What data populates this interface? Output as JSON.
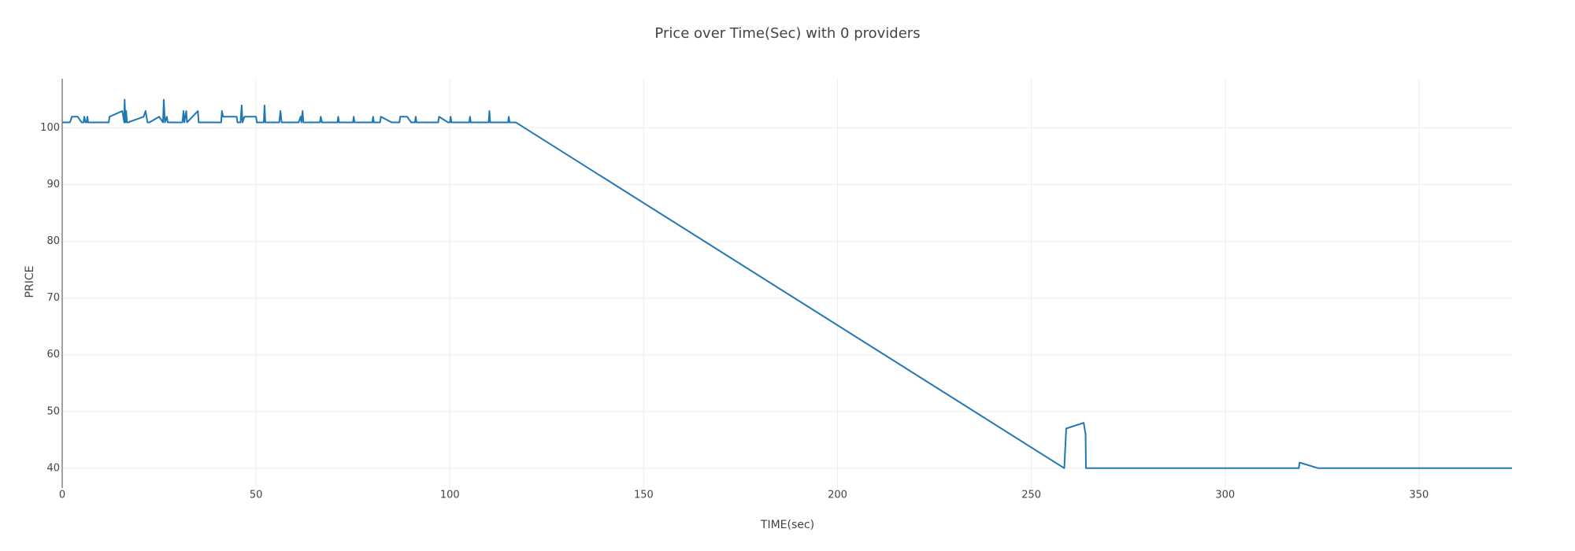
{
  "chart_data": {
    "type": "line",
    "title": "Price over Time(Sec) with 0 providers",
    "x_label": "TIME(sec)",
    "y_label": "PRICE",
    "xlim": [
      0,
      374
    ],
    "ylim": [
      36.5,
      108.7
    ],
    "xticks": [
      0,
      50,
      100,
      150,
      200,
      250,
      300,
      350
    ],
    "yticks": [
      40,
      50,
      60,
      70,
      80,
      90,
      100
    ],
    "grid": true,
    "series": [
      {
        "color": "#1f77b4",
        "x": [
          0,
          2,
          2.5,
          4,
          5,
          5.5,
          5.7,
          6,
          6.3,
          6.5,
          6.7,
          12,
          12.2,
          15.5,
          16,
          16.1,
          16.3,
          16.5,
          16.7,
          17,
          21,
          21.5,
          22,
          22.5,
          25,
          26,
          26.2,
          26.5,
          27,
          27.2,
          31,
          31.3,
          31.5,
          32,
          32.2,
          35,
          35.2,
          41,
          41.2,
          41.5,
          45,
          45.2,
          46,
          46.3,
          46.5,
          47,
          50,
          50.2,
          52,
          52.2,
          52.4,
          56,
          56.3,
          56.6,
          61,
          61.5,
          61.7,
          62,
          62.2,
          66.5,
          66.7,
          67,
          71,
          71.2,
          71.4,
          75,
          75.2,
          75.4,
          80,
          80.2,
          80.4,
          82,
          82.2,
          85,
          87,
          87.2,
          89,
          90,
          91,
          91.2,
          91.4,
          97,
          97.2,
          99.5,
          100,
          100.2,
          100.4,
          105,
          105.2,
          105.4,
          110,
          110.2,
          110.4,
          115,
          115.2,
          115.4,
          117,
          258.5,
          259,
          263.5,
          264,
          264.1,
          319,
          319.2,
          324,
          374
        ],
        "values": [
          101,
          101,
          102,
          102,
          101,
          101,
          102,
          101,
          101,
          102,
          101,
          101,
          102,
          103,
          101,
          105,
          101,
          103,
          101,
          101,
          102,
          103,
          101,
          101,
          102,
          101,
          105,
          101,
          102,
          101,
          101,
          103,
          101,
          103,
          101,
          103,
          101,
          101,
          103,
          102,
          102,
          101,
          101,
          104,
          101,
          102,
          102,
          101,
          101,
          104,
          101,
          101,
          103,
          101,
          101,
          102,
          101,
          103,
          101,
          101,
          102,
          101,
          101,
          102,
          101,
          101,
          102,
          101,
          101,
          102,
          101,
          101,
          102,
          101,
          101,
          102,
          102,
          101,
          101,
          102,
          101,
          101,
          102,
          101,
          101,
          102,
          101,
          101,
          102,
          101,
          101,
          103,
          101,
          101,
          102,
          101,
          101,
          40,
          47,
          48,
          46,
          40,
          40,
          41,
          40,
          40
        ]
      }
    ]
  }
}
